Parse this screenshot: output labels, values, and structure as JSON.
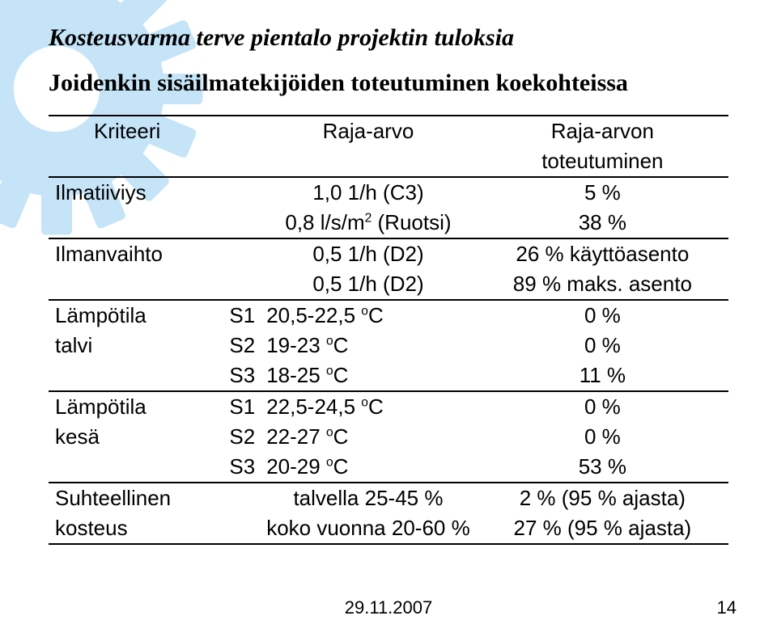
{
  "title": "Kosteusvarma terve pientalo projektin tuloksia",
  "subtitle": "Joidenkin sisäilmatekijöiden toteutuminen koekohteissa",
  "gear_color": "#c5e4f8",
  "table": {
    "header": {
      "col1": "Kriteeri",
      "col2": "Raja-arvo",
      "col3_line1": "Raja-arvon",
      "col3_line2": "toteutuminen"
    },
    "rows": [
      {
        "c1": "Ilmatiiviys",
        "c2a": "",
        "c2b": "1,0 1/h (C3)",
        "c3": "5 %"
      },
      {
        "c1": "",
        "c2a": "",
        "c2b": "0,8 l/s/m<sup>2</sup> (Ruotsi)",
        "c3": "38 %"
      },
      {
        "c1": "Ilmanvaihto",
        "c2a": "",
        "c2b": "0,5 1/h (D2)",
        "c3": "26 % käyttöasento"
      },
      {
        "c1": "",
        "c2a": "",
        "c2b": "0,5 1/h (D2)",
        "c3": "89 % maks. asento"
      },
      {
        "c1": "Lämpötila",
        "c2a": "S1",
        "c2b": "20,5-22,5 <sup>o</sup>C",
        "c3": "0 %"
      },
      {
        "c1": "talvi",
        "c2a": "S2",
        "c2b": "19-23 <sup>o</sup>C",
        "c3": "0 %"
      },
      {
        "c1": "",
        "c2a": "S3",
        "c2b": "18-25 <sup>o</sup>C",
        "c3": "11 %"
      },
      {
        "c1": "Lämpötila",
        "c2a": "S1",
        "c2b": "22,5-24,5 <sup>o</sup>C",
        "c3": "0 %"
      },
      {
        "c1": "kesä",
        "c2a": "S2",
        "c2b": "22-27 <sup>o</sup>C",
        "c3": "0 %"
      },
      {
        "c1": "",
        "c2a": "S3",
        "c2b": "20-29 <sup>o</sup>C",
        "c3": "53 %"
      },
      {
        "c1": "Suhteellinen",
        "c2a": "",
        "c2b": "talvella 25-45 %",
        "c3": "2 % (95 % ajasta)"
      },
      {
        "c1": "kosteus",
        "c2a": "",
        "c2b": "koko vuonna 20-60 %",
        "c3": "27 % (95 % ajasta)"
      }
    ],
    "section_breaks_after": [
      1,
      3,
      6,
      9
    ]
  },
  "footer": {
    "date": "29.11.2007",
    "page": "14"
  }
}
